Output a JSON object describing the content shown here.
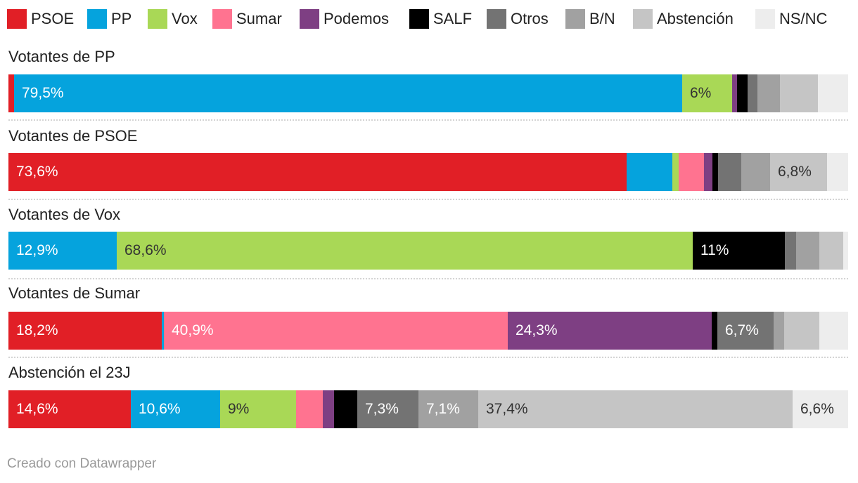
{
  "chart_data": {
    "type": "bar",
    "orientation": "horizontal",
    "stacked": true,
    "title": "",
    "xlabel": "",
    "ylabel": "",
    "xlim": [
      0,
      100
    ],
    "grid": false,
    "legend_position": "top",
    "series_names": [
      "PSOE",
      "PP",
      "Vox",
      "Sumar",
      "Podemos",
      "SALF",
      "Otros",
      "B/N",
      "Abstención",
      "NS/NC"
    ],
    "colors": [
      "#e11f26",
      "#05a3dd",
      "#a9d856",
      "#ff7390",
      "#7e3f83",
      "#000000",
      "#737373",
      "#a1a1a1",
      "#c5c5c5",
      "#ededed"
    ],
    "label_colors": [
      "#ffffff",
      "#ffffff",
      "#333333",
      "#ffffff",
      "#ffffff",
      "#ffffff",
      "#ffffff",
      "#ffffff",
      "#333333",
      "#333333"
    ],
    "categories": [
      "Votantes de PP",
      "Votantes de PSOE",
      "Votantes de Vox",
      "Votantes de Sumar",
      "Abstención el 23J"
    ],
    "values": [
      [
        0.7,
        79.5,
        6.0,
        0.0,
        0.6,
        1.2,
        1.2,
        2.7,
        4.5,
        3.6
      ],
      [
        73.6,
        5.5,
        0.7,
        3.0,
        1.0,
        0.7,
        2.8,
        3.4,
        6.8,
        2.5
      ],
      [
        0.0,
        12.9,
        68.6,
        0.0,
        0.0,
        11.0,
        1.3,
        2.8,
        2.8,
        0.6
      ],
      [
        18.2,
        0.3,
        0.0,
        40.9,
        24.3,
        0.6,
        6.7,
        1.3,
        4.2,
        3.4
      ],
      [
        14.6,
        10.6,
        9.0,
        3.2,
        1.3,
        2.8,
        7.3,
        7.1,
        37.4,
        6.6
      ]
    ],
    "data_labels": [
      [
        null,
        "79,5%",
        "6%",
        null,
        null,
        null,
        null,
        null,
        null,
        null
      ],
      [
        "73,6%",
        null,
        null,
        null,
        null,
        null,
        null,
        null,
        "6,8%",
        null
      ],
      [
        null,
        "12,9%",
        "68,6%",
        null,
        null,
        "11%",
        null,
        null,
        null,
        null
      ],
      [
        "18,2%",
        null,
        null,
        "40,9%",
        "24,3%",
        null,
        "6,7%",
        null,
        null,
        null
      ],
      [
        "14,6%",
        "10,6%",
        "9%",
        null,
        null,
        null,
        "7,3%",
        "7,1%",
        "37,4%",
        "6,6%"
      ]
    ]
  },
  "footer": "Creado con Datawrapper"
}
